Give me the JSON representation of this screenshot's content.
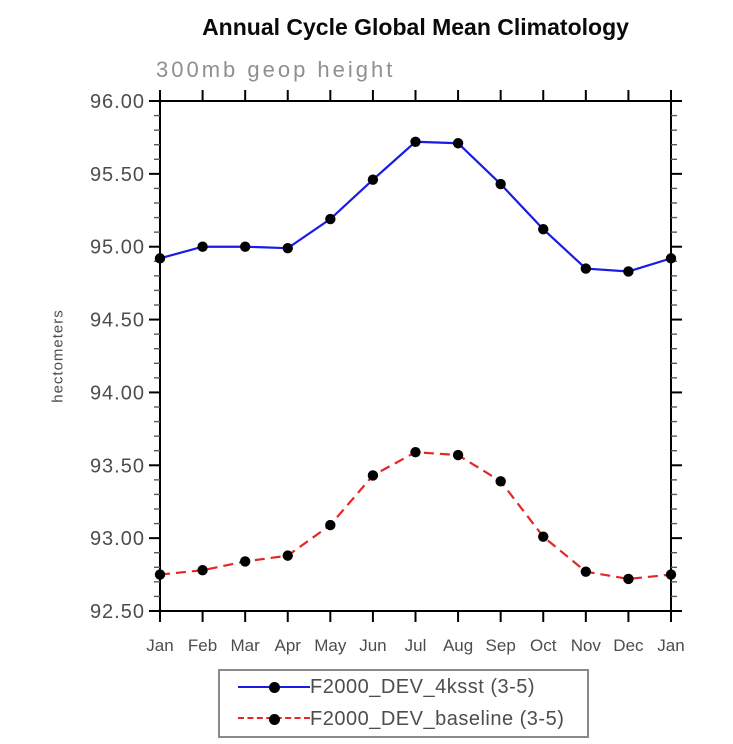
{
  "chart_data": {
    "type": "line",
    "title": "Annual Cycle Global Mean Climatology",
    "subtitle": "300mb geop height",
    "ylabel": "hectometers",
    "xlabel": "",
    "ylim": [
      92.5,
      96.0
    ],
    "ytick_step": 0.5,
    "yminor_step": 0.1,
    "ytick_labels": [
      "92.50",
      "93.00",
      "93.50",
      "94.00",
      "94.50",
      "95.00",
      "95.50",
      "96.00"
    ],
    "categories": [
      "Jan",
      "Feb",
      "Mar",
      "Apr",
      "May",
      "Jun",
      "Jul",
      "Aug",
      "Sep",
      "Oct",
      "Nov",
      "Dec",
      "Jan"
    ],
    "grid": false,
    "legend_position": "bottom",
    "series": [
      {
        "name": "F2000_DEV_4ksst (3-5)",
        "color": "#1b1be4",
        "line_style": "solid",
        "marker": "filled-black-circle",
        "values": [
          94.92,
          95.0,
          95.0,
          94.99,
          95.19,
          95.46,
          95.72,
          95.71,
          95.43,
          95.12,
          94.85,
          94.83,
          94.92
        ]
      },
      {
        "name": "F2000_DEV_baseline (3-5)",
        "color": "#e62525",
        "line_style": "dashed",
        "marker": "filled-black-circle",
        "values": [
          92.75,
          92.78,
          92.84,
          92.88,
          93.09,
          93.43,
          93.59,
          93.57,
          93.39,
          93.01,
          92.77,
          92.72,
          92.75
        ]
      }
    ]
  },
  "colors": {
    "background": "#ffffff",
    "axis": "#000000",
    "tick_label": "#4d4d4d",
    "minor_tick": "#5a5a5a",
    "title": "#0a0a0a",
    "subtitle": "#8f8f8f",
    "legend_border": "#8a8a8a",
    "marker": "#000000"
  }
}
